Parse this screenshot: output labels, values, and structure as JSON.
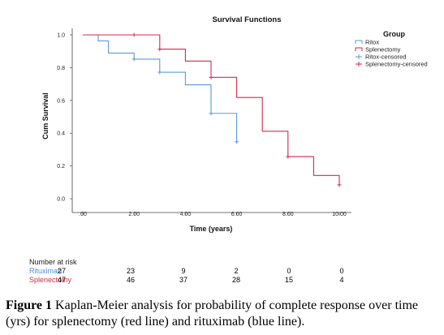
{
  "chart_data": {
    "type": "line",
    "subtype": "kaplan-meier step",
    "title": "Survival Functions",
    "xlabel": "Time (years)",
    "ylabel": "Cum Survival",
    "xlim": [
      0,
      10
    ],
    "ylim": [
      0,
      1
    ],
    "x_ticks": [
      ".00",
      "2.00",
      "4.00",
      "6.00",
      "8.00",
      "10.00"
    ],
    "y_ticks": [
      "0.0",
      "0.2",
      "0.4",
      "0.6",
      "0.8",
      "1.0"
    ],
    "grid": false,
    "legend": {
      "title": "Group",
      "position": "top-right",
      "entries": [
        "Ritox",
        "Splenectomy",
        "Ritox-censored",
        "Splenectomy-censored"
      ]
    },
    "series": [
      {
        "name": "Ritox",
        "color": "#5b9bd5",
        "steps": [
          [
            0,
            1.0
          ],
          [
            0.6,
            0.963
          ],
          [
            1.0,
            0.889
          ],
          [
            2.0,
            0.852
          ],
          [
            3.0,
            0.772
          ],
          [
            4.0,
            0.695
          ],
          [
            5.0,
            0.521
          ],
          [
            6.0,
            0.347
          ]
        ],
        "censored": [
          [
            2.0,
            0.852
          ],
          [
            3.0,
            0.772
          ],
          [
            5.0,
            0.521
          ],
          [
            6.0,
            0.347
          ]
        ]
      },
      {
        "name": "Splenectomy",
        "color": "#d42a4a",
        "steps": [
          [
            0,
            1.0
          ],
          [
            3.0,
            0.913
          ],
          [
            4.0,
            0.84
          ],
          [
            5.0,
            0.741
          ],
          [
            6.0,
            0.618
          ],
          [
            7.0,
            0.412
          ],
          [
            8.0,
            0.257
          ],
          [
            9.0,
            0.142
          ],
          [
            10.0,
            0.085
          ]
        ],
        "censored": [
          [
            2.0,
            1.0
          ],
          [
            3.0,
            0.913
          ],
          [
            5.0,
            0.741
          ],
          [
            8.0,
            0.257
          ],
          [
            10.0,
            0.085
          ]
        ]
      }
    ]
  },
  "risk_table": {
    "title": "Number at risk",
    "rows": [
      {
        "name": "Rituximab",
        "color": "#4a8fd8",
        "values": [
          "27",
          "23",
          "9",
          "2",
          "0",
          "0"
        ]
      },
      {
        "name": "Splenectomy",
        "color": "#d42a4a",
        "values": [
          "47",
          "46",
          "37",
          "28",
          "15",
          "4"
        ]
      }
    ]
  },
  "caption": {
    "label": "Figure 1",
    "text": " Kaplan-Meier analysis for probability of complete response over time (yrs) for splenectomy (red line) and rituximab (blue line)."
  }
}
